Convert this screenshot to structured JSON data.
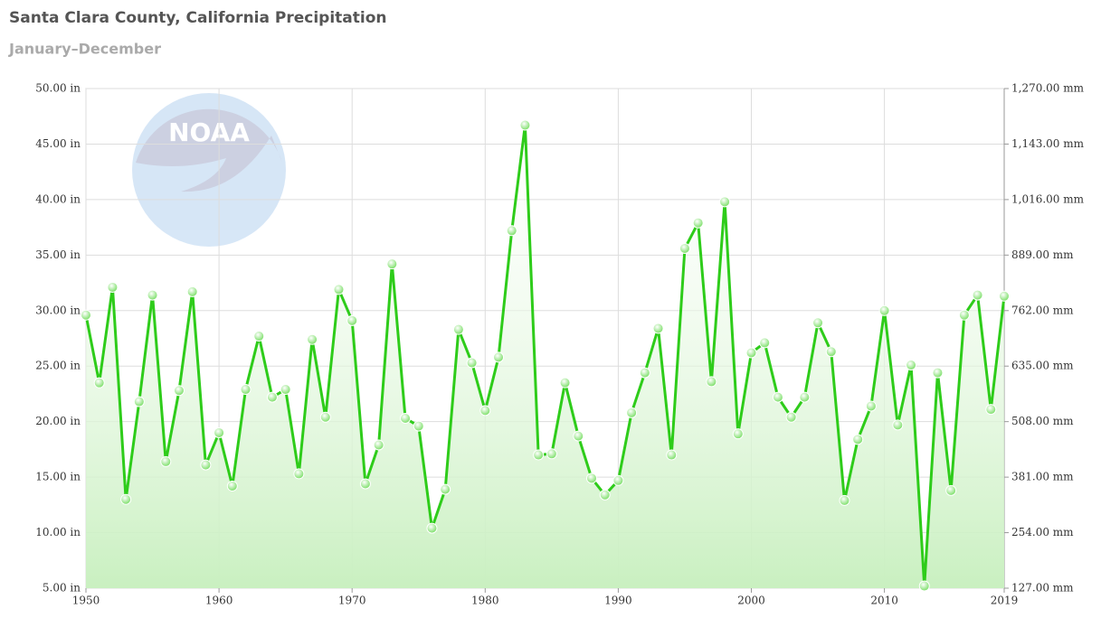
{
  "chart_data": {
    "type": "line",
    "title": "Santa Clara County, California Precipitation",
    "subtitle": "January–December",
    "logo_text": "NOAA",
    "x": [
      1950,
      1951,
      1952,
      1953,
      1954,
      1955,
      1956,
      1957,
      1958,
      1959,
      1960,
      1961,
      1962,
      1963,
      1964,
      1965,
      1966,
      1967,
      1968,
      1969,
      1970,
      1971,
      1972,
      1973,
      1974,
      1975,
      1976,
      1977,
      1978,
      1979,
      1980,
      1981,
      1982,
      1983,
      1984,
      1985,
      1986,
      1987,
      1988,
      1989,
      1990,
      1991,
      1992,
      1993,
      1994,
      1995,
      1996,
      1997,
      1998,
      1999,
      2000,
      2001,
      2002,
      2003,
      2004,
      2005,
      2006,
      2007,
      2008,
      2009,
      2010,
      2011,
      2012,
      2013,
      2014,
      2015,
      2016,
      2017,
      2018,
      2019
    ],
    "values": [
      29.6,
      23.5,
      32.1,
      13.0,
      21.8,
      31.4,
      16.4,
      22.8,
      31.7,
      16.1,
      19.0,
      14.2,
      22.9,
      27.7,
      22.2,
      22.9,
      15.3,
      27.4,
      20.4,
      31.9,
      29.1,
      14.4,
      17.9,
      34.2,
      20.3,
      19.6,
      10.4,
      13.9,
      28.3,
      25.3,
      21.0,
      25.8,
      37.2,
      46.7,
      17.0,
      17.1,
      23.5,
      18.7,
      14.9,
      13.4,
      14.7,
      20.8,
      24.4,
      28.4,
      17.0,
      35.6,
      37.9,
      23.6,
      39.8,
      18.9,
      26.2,
      27.1,
      22.2,
      20.4,
      22.2,
      28.9,
      26.3,
      12.9,
      18.4,
      21.4,
      30.0,
      19.7,
      25.1,
      5.2,
      24.4,
      13.8,
      29.6,
      31.4,
      21.1,
      31.3
    ],
    "color": "#2ecc1a",
    "area_color": "#c9f0c0",
    "xlim": [
      1950,
      2019
    ],
    "xticks": [
      1950,
      1960,
      1970,
      1980,
      1990,
      2000,
      2010,
      2019
    ],
    "ylim": [
      5,
      50
    ],
    "yticks": [
      {
        "value": 5,
        "label": "5.00 in"
      },
      {
        "value": 10,
        "label": "10.00 in"
      },
      {
        "value": 15,
        "label": "15.00 in"
      },
      {
        "value": 20,
        "label": "20.00 in"
      },
      {
        "value": 25,
        "label": "25.00 in"
      },
      {
        "value": 30,
        "label": "30.00 in"
      },
      {
        "value": 35,
        "label": "35.00 in"
      },
      {
        "value": 40,
        "label": "40.00 in"
      },
      {
        "value": 45,
        "label": "45.00 in"
      },
      {
        "value": 50,
        "label": "50.00 in"
      }
    ],
    "y2lim": [
      127,
      1270
    ],
    "y2ticks": [
      {
        "value": 127,
        "label": "127.00 mm"
      },
      {
        "value": 254,
        "label": "254.00 mm"
      },
      {
        "value": 381,
        "label": "381.00 mm"
      },
      {
        "value": 508,
        "label": "508.00 mm"
      },
      {
        "value": 635,
        "label": "635.00 mm"
      },
      {
        "value": 762,
        "label": "762.00 mm"
      },
      {
        "value": 889,
        "label": "889.00 mm"
      },
      {
        "value": 1016,
        "label": "1,016.00 mm"
      },
      {
        "value": 1143,
        "label": "1,143.00 mm"
      },
      {
        "value": 1270,
        "label": "1,270.00 mm"
      }
    ],
    "grid": true
  }
}
